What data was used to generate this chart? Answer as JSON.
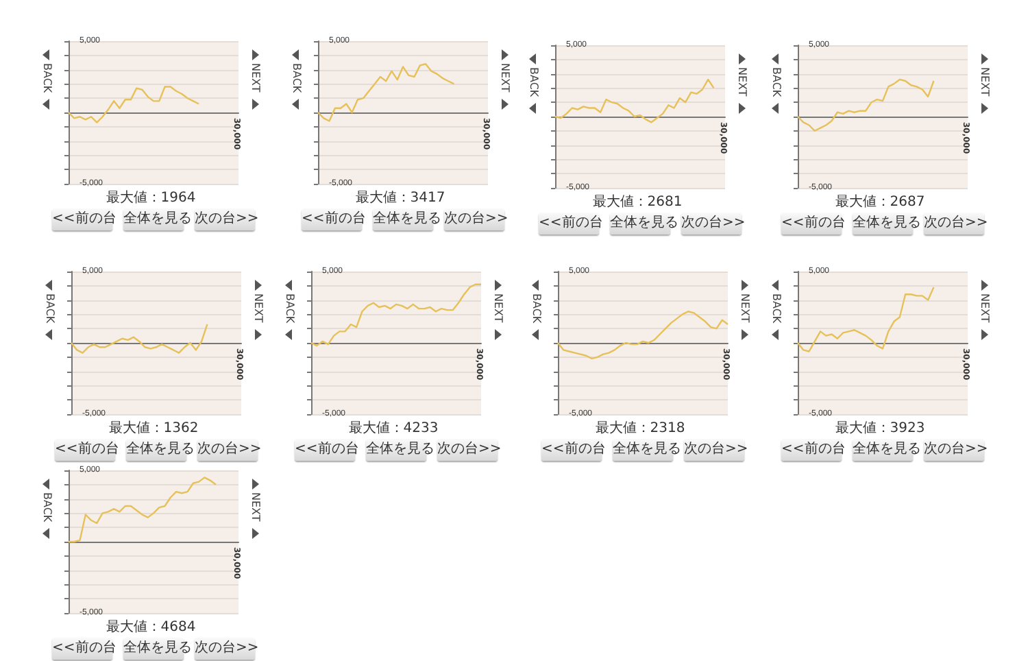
{
  "chart_data": [
    {
      "type": "line",
      "color": "#e6c15a",
      "categories": [
        null,
        null,
        null,
        null,
        null,
        null,
        null,
        null,
        null,
        null,
        null,
        null,
        null,
        null,
        null,
        null,
        null,
        null,
        null,
        null,
        null,
        null,
        null,
        null,
        null,
        null,
        null,
        null,
        null,
        null,
        null
      ],
      "ylim": [
        -5000,
        5000
      ],
      "yticks": [
        {
          "value": -5000,
          "label": "-5,000"
        },
        {
          "value": -4000,
          "label": null
        },
        {
          "value": -3000,
          "label": null
        },
        {
          "value": -2000,
          "label": null
        },
        {
          "value": -1000,
          "label": null
        },
        {
          "value": 0,
          "label": null
        },
        {
          "value": 1000,
          "label": null
        },
        {
          "value": 2000,
          "label": null
        },
        {
          "value": 3000,
          "label": null
        },
        {
          "value": 4000,
          "label": null
        },
        {
          "value": 5000,
          "label": "5,000"
        }
      ],
      "grid": "y",
      "marker": "none",
      "annotations": [
        "最大値：1964",
        "<<前の台",
        "全体を見る",
        "次の台>>",
        "BACK",
        "NEXT",
        "30,000"
      ],
      "values": [
        0,
        -400,
        -300,
        -500,
        -300,
        -700,
        -300,
        200,
        800,
        300,
        900,
        900,
        1700,
        1600,
        1100,
        800,
        800,
        1800,
        1800,
        1500,
        1300,
        1000,
        800,
        600,
        null,
        null,
        null,
        null,
        null,
        null,
        null
      ]
    },
    {
      "type": "line",
      "color": "#e6c15a",
      "categories": [
        null,
        null,
        null,
        null,
        null,
        null,
        null,
        null,
        null,
        null,
        null,
        null,
        null,
        null,
        null,
        null,
        null,
        null,
        null,
        null,
        null,
        null,
        null,
        null,
        null,
        null,
        null,
        null,
        null,
        null,
        null
      ],
      "ylim": [
        -5000,
        5000
      ],
      "yticks": [
        {
          "value": -5000,
          "label": "-5,000"
        },
        {
          "value": -4000,
          "label": null
        },
        {
          "value": -3000,
          "label": null
        },
        {
          "value": -2000,
          "label": null
        },
        {
          "value": -1000,
          "label": null
        },
        {
          "value": 0,
          "label": null
        },
        {
          "value": 1000,
          "label": null
        },
        {
          "value": 2000,
          "label": null
        },
        {
          "value": 3000,
          "label": null
        },
        {
          "value": 4000,
          "label": null
        },
        {
          "value": 5000,
          "label": "5,000"
        }
      ],
      "grid": "y",
      "marker": "none",
      "annotations": [
        "最大値：3417",
        "<<前の台",
        "全体を見る",
        "次の台>>",
        "BACK",
        "NEXT",
        "30,000"
      ],
      "values": [
        0,
        -400,
        -600,
        300,
        300,
        600,
        0,
        900,
        1000,
        1500,
        2000,
        2500,
        2200,
        2900,
        2300,
        3200,
        2600,
        2500,
        3300,
        3400,
        2900,
        2700,
        2400,
        2200,
        2000,
        null,
        null,
        null,
        null,
        null,
        null
      ]
    },
    {
      "type": "line",
      "color": "#e6c15a",
      "categories": [
        null,
        null,
        null,
        null,
        null,
        null,
        null,
        null,
        null,
        null,
        null,
        null,
        null,
        null,
        null,
        null,
        null,
        null,
        null,
        null,
        null,
        null,
        null,
        null,
        null,
        null,
        null,
        null,
        null,
        null,
        null
      ],
      "ylim": [
        -5000,
        5000
      ],
      "yticks": [
        {
          "value": -5000,
          "label": "-5,000"
        },
        {
          "value": -4000,
          "label": null
        },
        {
          "value": -3000,
          "label": null
        },
        {
          "value": -2000,
          "label": null
        },
        {
          "value": -1000,
          "label": null
        },
        {
          "value": 0,
          "label": null
        },
        {
          "value": 1000,
          "label": null
        },
        {
          "value": 2000,
          "label": null
        },
        {
          "value": 3000,
          "label": null
        },
        {
          "value": 4000,
          "label": null
        },
        {
          "value": 5000,
          "label": "5,000"
        }
      ],
      "grid": "y",
      "marker": "none",
      "annotations": [
        "最大値：2681",
        "<<前の台",
        "全体を見る",
        "次の台>>",
        "BACK",
        "NEXT",
        "30,000"
      ],
      "values": [
        0,
        -100,
        200,
        600,
        500,
        700,
        600,
        600,
        300,
        1200,
        1000,
        900,
        600,
        400,
        0,
        100,
        -200,
        -400,
        -100,
        200,
        800,
        600,
        1300,
        1000,
        1700,
        1600,
        1900,
        2600,
        2000,
        null,
        null
      ]
    },
    {
      "type": "line",
      "color": "#e6c15a",
      "categories": [
        null,
        null,
        null,
        null,
        null,
        null,
        null,
        null,
        null,
        null,
        null,
        null,
        null,
        null,
        null,
        null,
        null,
        null,
        null,
        null,
        null,
        null,
        null,
        null,
        null,
        null,
        null,
        null,
        null,
        null,
        null
      ],
      "ylim": [
        -5000,
        5000
      ],
      "yticks": [
        {
          "value": -5000,
          "label": "-5,000"
        },
        {
          "value": -4000,
          "label": null
        },
        {
          "value": -3000,
          "label": null
        },
        {
          "value": -2000,
          "label": null
        },
        {
          "value": -1000,
          "label": null
        },
        {
          "value": 0,
          "label": null
        },
        {
          "value": 1000,
          "label": null
        },
        {
          "value": 2000,
          "label": null
        },
        {
          "value": 3000,
          "label": null
        },
        {
          "value": 4000,
          "label": null
        },
        {
          "value": 5000,
          "label": "5,000"
        }
      ],
      "grid": "y",
      "marker": "none",
      "annotations": [
        "最大値：2687",
        "<<前の台",
        "全体を見る",
        "次の台>>",
        "BACK",
        "NEXT",
        "30,000"
      ],
      "values": [
        0,
        -400,
        -600,
        -1000,
        -800,
        -600,
        -300,
        300,
        200,
        400,
        300,
        400,
        400,
        1000,
        1200,
        1100,
        2100,
        2300,
        2600,
        2500,
        2200,
        2100,
        1900,
        1400,
        2500,
        null,
        null,
        null,
        null,
        null,
        null
      ]
    },
    {
      "type": "line",
      "color": "#e6c15a",
      "categories": [
        null,
        null,
        null,
        null,
        null,
        null,
        null,
        null,
        null,
        null,
        null,
        null,
        null,
        null,
        null,
        null,
        null,
        null,
        null,
        null,
        null,
        null,
        null,
        null,
        null,
        null,
        null,
        null,
        null,
        null,
        null
      ],
      "ylim": [
        -5000,
        5000
      ],
      "yticks": [
        {
          "value": -5000,
          "label": "-5,000"
        },
        {
          "value": -4000,
          "label": null
        },
        {
          "value": -3000,
          "label": null
        },
        {
          "value": -2000,
          "label": null
        },
        {
          "value": -1000,
          "label": null
        },
        {
          "value": 0,
          "label": null
        },
        {
          "value": 1000,
          "label": null
        },
        {
          "value": 2000,
          "label": null
        },
        {
          "value": 3000,
          "label": null
        },
        {
          "value": 4000,
          "label": null
        },
        {
          "value": 5000,
          "label": "5,000"
        }
      ],
      "grid": "y",
      "marker": "none",
      "annotations": [
        "最大値：1362",
        "<<前の台",
        "全体を見る",
        "次の台>>",
        "BACK",
        "NEXT",
        "30,000"
      ],
      "values": [
        0,
        -500,
        -700,
        -300,
        -100,
        -300,
        -300,
        -100,
        100,
        300,
        200,
        400,
        100,
        -300,
        -400,
        -300,
        -100,
        -300,
        -500,
        -700,
        -300,
        0,
        -500,
        100,
        1300,
        null,
        null,
        null,
        null,
        null,
        null
      ]
    },
    {
      "type": "line",
      "color": "#e6c15a",
      "categories": [
        null,
        null,
        null,
        null,
        null,
        null,
        null,
        null,
        null,
        null,
        null,
        null,
        null,
        null,
        null,
        null,
        null,
        null,
        null,
        null,
        null,
        null,
        null,
        null,
        null,
        null,
        null,
        null,
        null,
        null,
        null
      ],
      "ylim": [
        -5000,
        5000
      ],
      "yticks": [
        {
          "value": -5000,
          "label": "-5,000"
        },
        {
          "value": -4000,
          "label": null
        },
        {
          "value": -3000,
          "label": null
        },
        {
          "value": -2000,
          "label": null
        },
        {
          "value": -1000,
          "label": null
        },
        {
          "value": 0,
          "label": null
        },
        {
          "value": 1000,
          "label": null
        },
        {
          "value": 2000,
          "label": null
        },
        {
          "value": 3000,
          "label": null
        },
        {
          "value": 4000,
          "label": null
        },
        {
          "value": 5000,
          "label": "5,000"
        }
      ],
      "grid": "y",
      "marker": "none",
      "annotations": [
        "最大値：4233",
        "<<前の台",
        "全体を見る",
        "次の台>>",
        "BACK",
        "NEXT",
        "30,000"
      ],
      "values": [
        0,
        -200,
        100,
        -100,
        500,
        800,
        800,
        1300,
        1100,
        2200,
        2600,
        2800,
        2500,
        2600,
        2400,
        2700,
        2600,
        2400,
        2700,
        2400,
        2400,
        2500,
        2200,
        2400,
        2300,
        2300,
        2800,
        3400,
        3900,
        4100,
        4100
      ]
    },
    {
      "type": "line",
      "color": "#e6c15a",
      "categories": [
        null,
        null,
        null,
        null,
        null,
        null,
        null,
        null,
        null,
        null,
        null,
        null,
        null,
        null,
        null,
        null,
        null,
        null,
        null,
        null,
        null,
        null,
        null,
        null,
        null,
        null,
        null,
        null,
        null,
        null,
        null
      ],
      "ylim": [
        -5000,
        5000
      ],
      "yticks": [
        {
          "value": -5000,
          "label": "-5,000"
        },
        {
          "value": -4000,
          "label": null
        },
        {
          "value": -3000,
          "label": null
        },
        {
          "value": -2000,
          "label": null
        },
        {
          "value": -1000,
          "label": null
        },
        {
          "value": 0,
          "label": null
        },
        {
          "value": 1000,
          "label": null
        },
        {
          "value": 2000,
          "label": null
        },
        {
          "value": 3000,
          "label": null
        },
        {
          "value": 4000,
          "label": null
        },
        {
          "value": 5000,
          "label": "5,000"
        }
      ],
      "grid": "y",
      "marker": "none",
      "annotations": [
        "最大値：2318",
        "<<前の台",
        "全体を見る",
        "次の台>>",
        "BACK",
        "NEXT",
        "30,000"
      ],
      "values": [
        0,
        -500,
        -600,
        -700,
        -800,
        -900,
        -1100,
        -1000,
        -800,
        -700,
        -500,
        -200,
        0,
        -100,
        -100,
        100,
        0,
        200,
        600,
        1000,
        1400,
        1700,
        2000,
        2200,
        2100,
        1800,
        1500,
        1100,
        1000,
        1600,
        1300
      ]
    },
    {
      "type": "line",
      "color": "#e6c15a",
      "categories": [
        null,
        null,
        null,
        null,
        null,
        null,
        null,
        null,
        null,
        null,
        null,
        null,
        null,
        null,
        null,
        null,
        null,
        null,
        null,
        null,
        null,
        null,
        null,
        null,
        null,
        null,
        null,
        null,
        null,
        null,
        null
      ],
      "ylim": [
        -5000,
        5000
      ],
      "yticks": [
        {
          "value": -5000,
          "label": "-5,000"
        },
        {
          "value": -4000,
          "label": null
        },
        {
          "value": -3000,
          "label": null
        },
        {
          "value": -2000,
          "label": null
        },
        {
          "value": -1000,
          "label": null
        },
        {
          "value": 0,
          "label": null
        },
        {
          "value": 1000,
          "label": null
        },
        {
          "value": 2000,
          "label": null
        },
        {
          "value": 3000,
          "label": null
        },
        {
          "value": 4000,
          "label": null
        },
        {
          "value": 5000,
          "label": "5,000"
        }
      ],
      "grid": "y",
      "marker": "none",
      "annotations": [
        "最大値：3923",
        "<<前の台",
        "全体を見る",
        "次の台>>",
        "BACK",
        "NEXT",
        "30,000"
      ],
      "values": [
        0,
        -500,
        -600,
        100,
        800,
        500,
        600,
        300,
        700,
        800,
        900,
        700,
        500,
        200,
        -200,
        -400,
        800,
        1500,
        1800,
        3400,
        3400,
        3300,
        3300,
        3000,
        3900,
        null,
        null,
        null,
        null,
        null,
        null
      ]
    },
    {
      "type": "line",
      "color": "#e6c15a",
      "categories": [
        null,
        null,
        null,
        null,
        null,
        null,
        null,
        null,
        null,
        null,
        null,
        null,
        null,
        null,
        null,
        null,
        null,
        null,
        null,
        null,
        null,
        null,
        null,
        null,
        null,
        null,
        null,
        null,
        null,
        null,
        null
      ],
      "ylim": [
        -5000,
        5000
      ],
      "yticks": [
        {
          "value": -5000,
          "label": "-5,000"
        },
        {
          "value": -4000,
          "label": null
        },
        {
          "value": -3000,
          "label": null
        },
        {
          "value": -2000,
          "label": null
        },
        {
          "value": -1000,
          "label": null
        },
        {
          "value": 0,
          "label": null
        },
        {
          "value": 1000,
          "label": null
        },
        {
          "value": 2000,
          "label": null
        },
        {
          "value": 3000,
          "label": null
        },
        {
          "value": 4000,
          "label": null
        },
        {
          "value": 5000,
          "label": "5,000"
        }
      ],
      "grid": "y",
      "marker": "none",
      "annotations": [
        "最大値：4684",
        "<<前の台",
        "全体を見る",
        "次の台>>",
        "BACK",
        "NEXT",
        "30,000"
      ],
      "values": [
        0,
        0,
        100,
        1900,
        1500,
        1300,
        2000,
        2100,
        2300,
        2100,
        2500,
        2500,
        2200,
        1900,
        1700,
        2000,
        2400,
        2500,
        3100,
        3500,
        3400,
        3500,
        4100,
        4200,
        4500,
        4300,
        4000,
        null,
        null,
        null,
        null
      ]
    }
  ]
}
